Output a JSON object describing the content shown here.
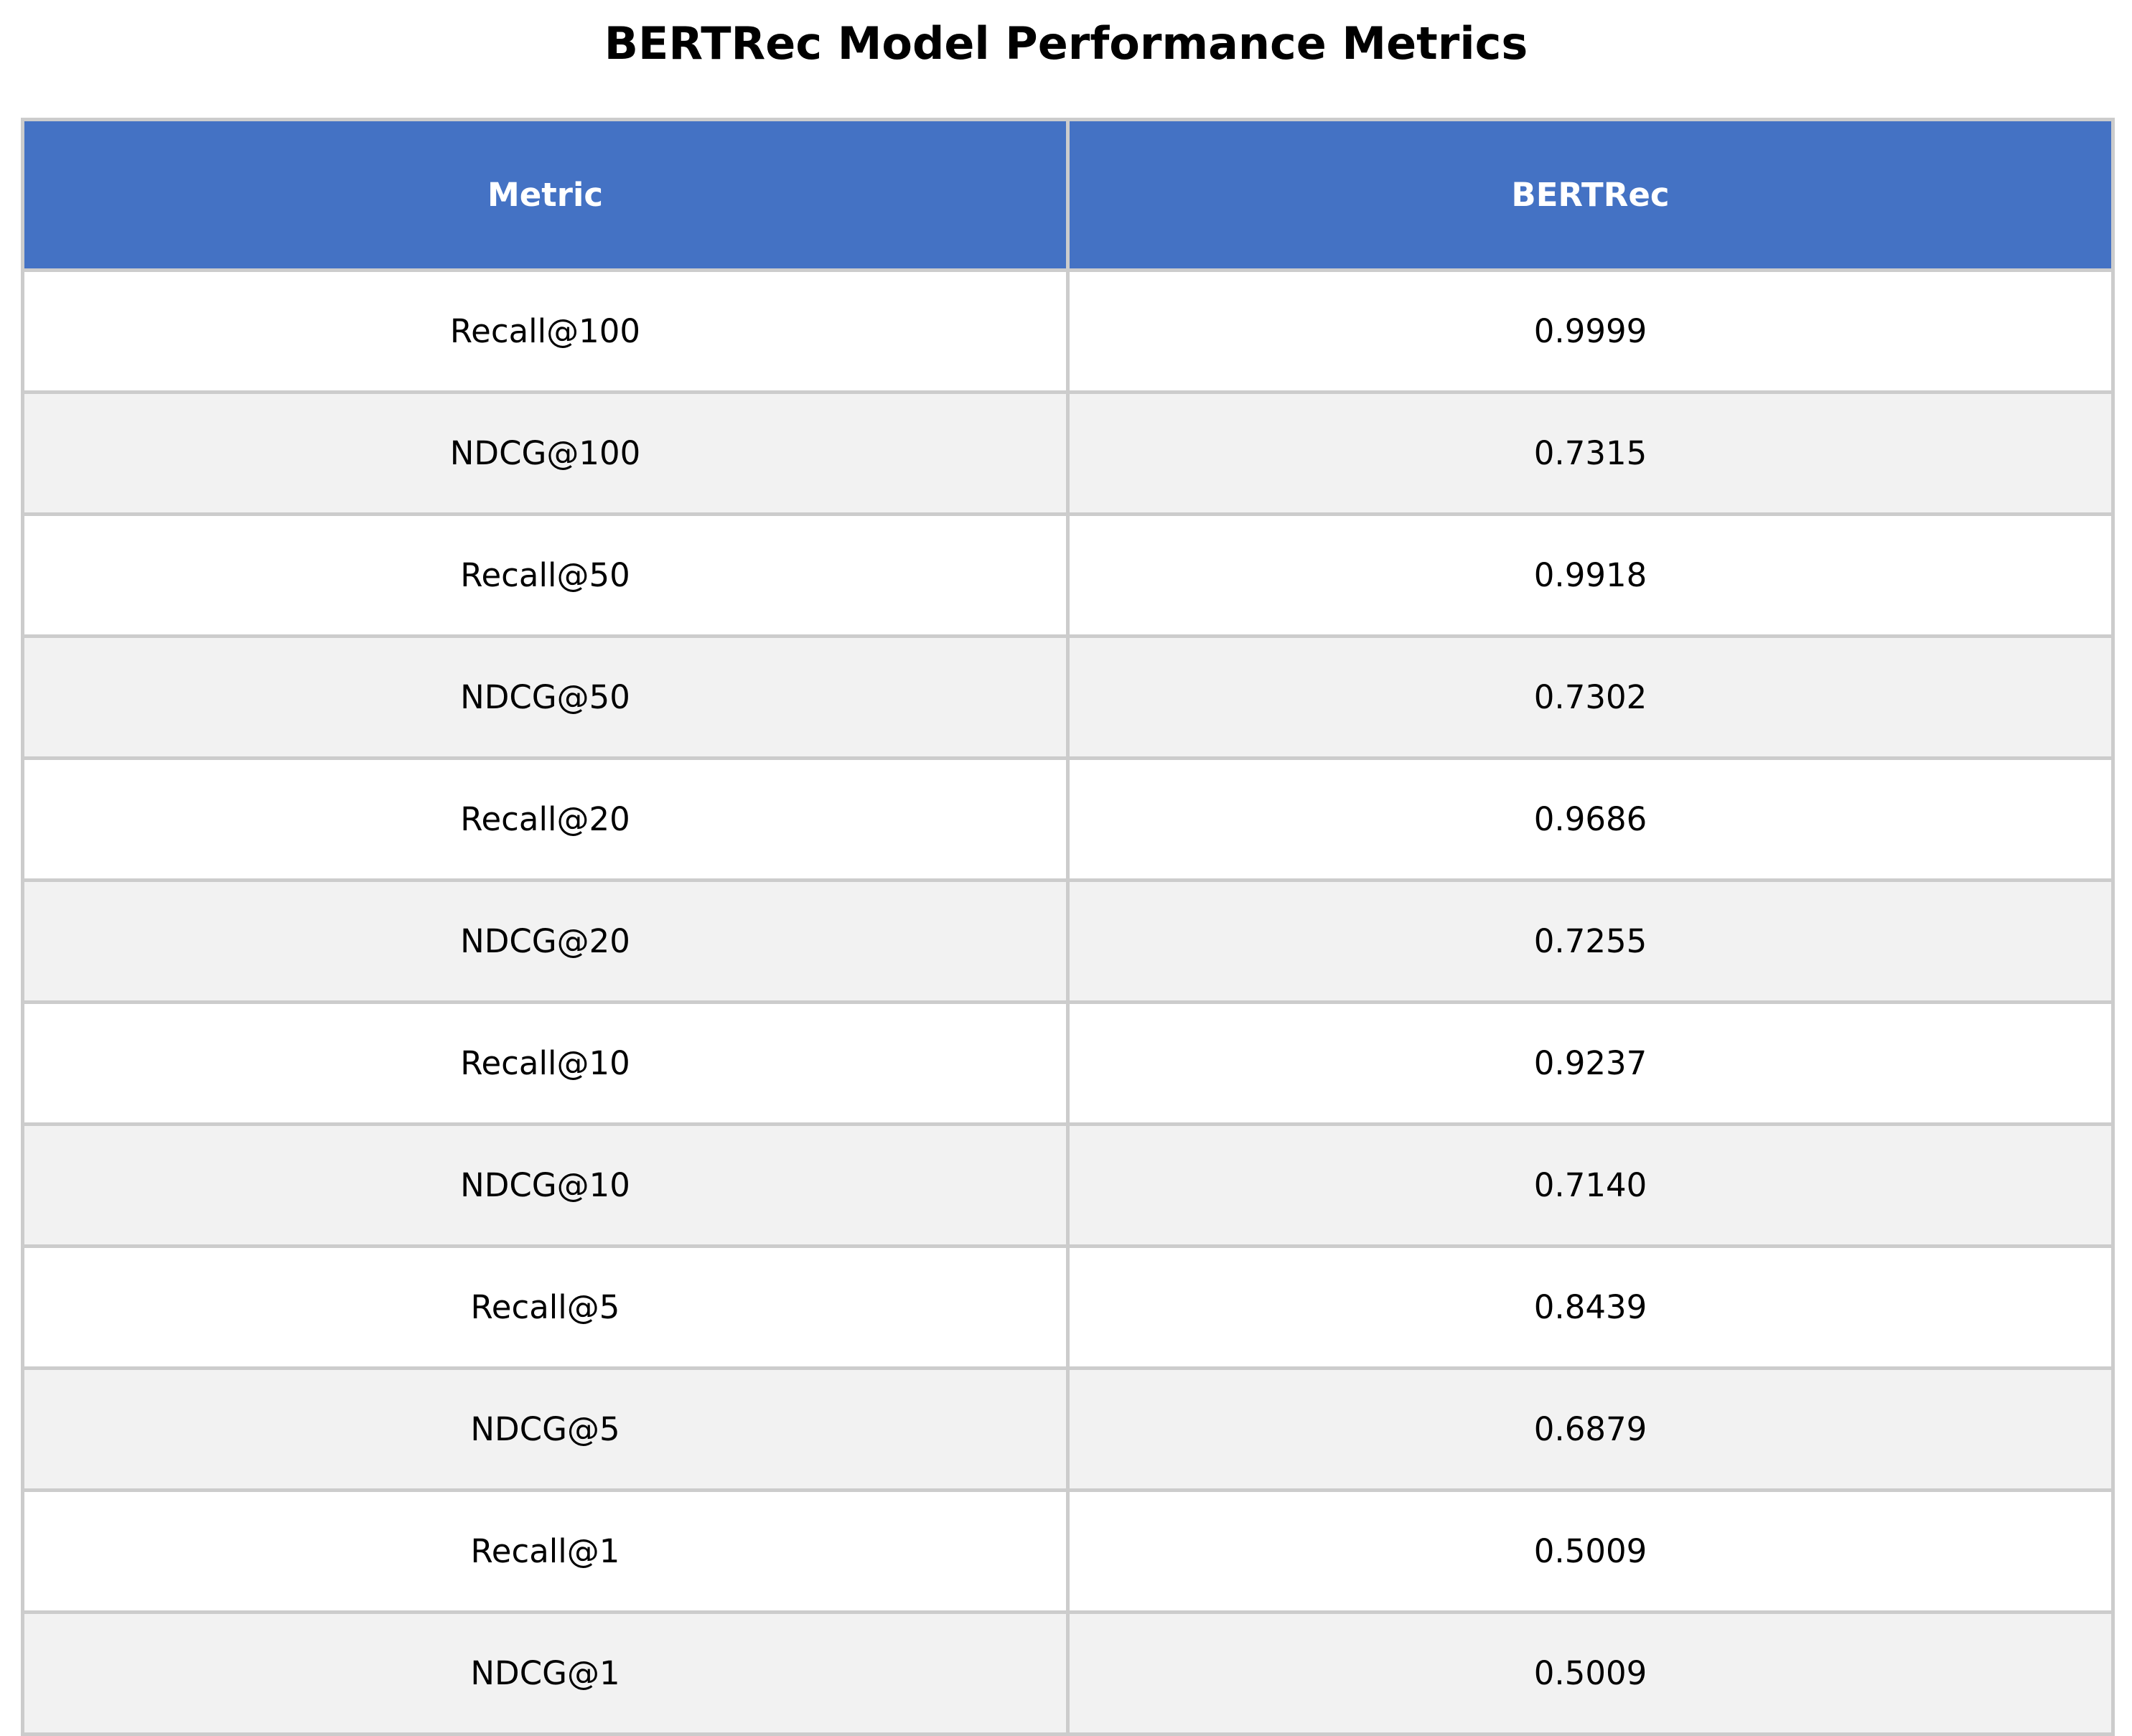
{
  "chart_data": {
    "type": "table",
    "title": "BERTRec Model Performance Metrics",
    "columns": [
      "Metric",
      "BERTRec"
    ],
    "rows": [
      [
        "Recall@100",
        "0.9999"
      ],
      [
        "NDCG@100",
        "0.7315"
      ],
      [
        "Recall@50",
        "0.9918"
      ],
      [
        "NDCG@50",
        "0.7302"
      ],
      [
        "Recall@20",
        "0.9686"
      ],
      [
        "NDCG@20",
        "0.7255"
      ],
      [
        "Recall@10",
        "0.9237"
      ],
      [
        "NDCG@10",
        "0.7140"
      ],
      [
        "Recall@5",
        "0.8439"
      ],
      [
        "NDCG@5",
        "0.6879"
      ],
      [
        "Recall@1",
        "0.5009"
      ],
      [
        "NDCG@1",
        "0.5009"
      ]
    ],
    "colors": {
      "header_bg": "#4472c4",
      "header_text": "#ffffff",
      "row_alt_bg": "#f2f2f2",
      "row_bg": "#ffffff",
      "border": "#cccccc"
    }
  }
}
